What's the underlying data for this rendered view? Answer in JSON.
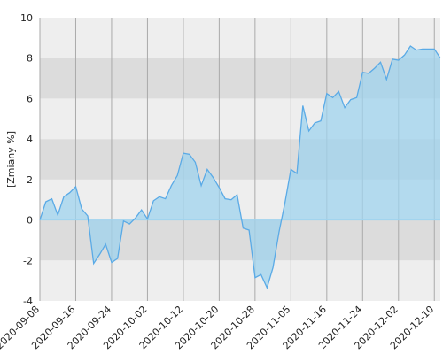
{
  "chart_data": {
    "type": "area",
    "y_label": "[Zmiany %]",
    "categories": [
      "2020-09-08",
      null,
      null,
      null,
      null,
      null,
      "2020-09-16",
      null,
      null,
      null,
      null,
      null,
      "2020-09-24",
      null,
      null,
      null,
      null,
      null,
      "2020-10-02",
      null,
      null,
      null,
      null,
      null,
      "2020-10-12",
      null,
      null,
      null,
      null,
      null,
      "2020-10-20",
      null,
      null,
      null,
      null,
      null,
      "2020-10-28",
      null,
      null,
      null,
      null,
      null,
      "2020-11-05",
      null,
      null,
      null,
      null,
      null,
      "2020-11-16",
      null,
      null,
      null,
      null,
      null,
      "2020-11-24",
      null,
      null,
      null,
      null,
      null,
      "2020-12-02",
      null,
      null,
      null,
      null,
      null,
      "2020-12-10",
      null
    ],
    "values": [
      0,
      0.9,
      1.05,
      0.25,
      1.15,
      1.35,
      1.65,
      0.55,
      0.2,
      -2.15,
      -1.7,
      -1.2,
      -2.1,
      -1.9,
      -0.05,
      -0.2,
      0.1,
      0.5,
      0.05,
      0.95,
      1.15,
      1.05,
      1.7,
      2.2,
      3.3,
      3.25,
      2.85,
      1.7,
      2.5,
      2.1,
      1.6,
      1.05,
      1.0,
      1.25,
      -0.4,
      -0.5,
      -2.85,
      -2.7,
      -3.35,
      -2.35,
      -0.6,
      0.85,
      2.5,
      2.3,
      5.65,
      4.4,
      4.8,
      4.9,
      6.25,
      6.05,
      6.35,
      5.55,
      5.95,
      6.05,
      7.3,
      7.25,
      7.5,
      7.8,
      6.95,
      7.95,
      7.9,
      8.15,
      8.6,
      8.4,
      8.45,
      8.45,
      8.45,
      8.0
    ],
    "color": "#5aaae6",
    "fill": "#9fd3ee",
    "ylim": [
      -4,
      10
    ],
    "yticks": [
      -4,
      -2,
      0,
      2,
      4,
      6,
      8,
      10
    ],
    "grid": true
  }
}
